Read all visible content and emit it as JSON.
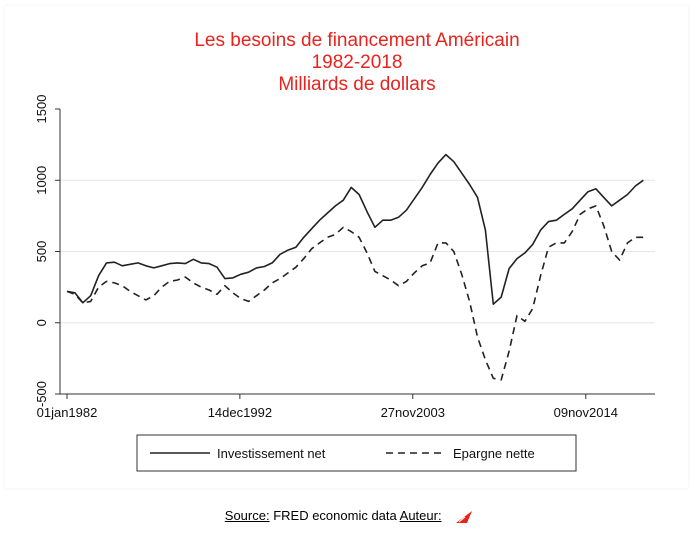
{
  "chart_data": {
    "type": "line",
    "title_lines": [
      "Les besoins de financement Américain",
      "1982-2018",
      "Milliards de dollars"
    ],
    "xlabel": "",
    "ylabel": "",
    "x_tick_labels": [
      "01jan1982",
      "14dec1992",
      "27nov2003",
      "09nov2014"
    ],
    "x_ticks": [
      1982.0,
      1992.95,
      2003.9,
      2014.86
    ],
    "xlim": [
      1982,
      2018.8
    ],
    "y_ticks": [
      -500,
      0,
      500,
      1000,
      1500
    ],
    "y_tick_labels": [
      "-500",
      "0",
      "500",
      "1000",
      "1500"
    ],
    "ylim": [
      -500,
      1500
    ],
    "grid": "horizontal",
    "legend_position": "bottom",
    "series": [
      {
        "name": "Investissement net",
        "style": "solid",
        "color": "#222222",
        "points": [
          [
            1982.0,
            220
          ],
          [
            1982.5,
            210
          ],
          [
            1983.0,
            140
          ],
          [
            1983.5,
            190
          ],
          [
            1984.0,
            330
          ],
          [
            1984.5,
            420
          ],
          [
            1985.0,
            425
          ],
          [
            1985.5,
            400
          ],
          [
            1986.0,
            410
          ],
          [
            1986.5,
            420
          ],
          [
            1987.0,
            400
          ],
          [
            1987.5,
            385
          ],
          [
            1988.0,
            400
          ],
          [
            1988.5,
            415
          ],
          [
            1989.0,
            420
          ],
          [
            1989.5,
            415
          ],
          [
            1990.0,
            445
          ],
          [
            1990.5,
            420
          ],
          [
            1991.0,
            415
          ],
          [
            1991.5,
            390
          ],
          [
            1992.0,
            310
          ],
          [
            1992.5,
            315
          ],
          [
            1993.0,
            340
          ],
          [
            1993.5,
            355
          ],
          [
            1994.0,
            385
          ],
          [
            1994.5,
            395
          ],
          [
            1995.0,
            420
          ],
          [
            1995.5,
            480
          ],
          [
            1996.0,
            510
          ],
          [
            1996.5,
            530
          ],
          [
            1997.0,
            600
          ],
          [
            1997.5,
            660
          ],
          [
            1998.0,
            720
          ],
          [
            1998.5,
            770
          ],
          [
            1999.0,
            820
          ],
          [
            1999.5,
            860
          ],
          [
            2000.0,
            950
          ],
          [
            2000.5,
            900
          ],
          [
            2001.0,
            780
          ],
          [
            2001.5,
            670
          ],
          [
            2002.0,
            720
          ],
          [
            2002.5,
            720
          ],
          [
            2003.0,
            740
          ],
          [
            2003.5,
            790
          ],
          [
            2004.0,
            870
          ],
          [
            2004.5,
            950
          ],
          [
            2005.0,
            1040
          ],
          [
            2005.5,
            1120
          ],
          [
            2006.0,
            1180
          ],
          [
            2006.5,
            1130
          ],
          [
            2007.0,
            1050
          ],
          [
            2007.5,
            970
          ],
          [
            2008.0,
            880
          ],
          [
            2008.5,
            650
          ],
          [
            2009.0,
            130
          ],
          [
            2009.5,
            180
          ],
          [
            2010.0,
            380
          ],
          [
            2010.5,
            450
          ],
          [
            2011.0,
            490
          ],
          [
            2011.5,
            550
          ],
          [
            2012.0,
            650
          ],
          [
            2012.5,
            710
          ],
          [
            2013.0,
            720
          ],
          [
            2013.5,
            760
          ],
          [
            2014.0,
            800
          ],
          [
            2014.5,
            860
          ],
          [
            2015.0,
            920
          ],
          [
            2015.5,
            940
          ],
          [
            2016.0,
            880
          ],
          [
            2016.5,
            820
          ],
          [
            2017.0,
            860
          ],
          [
            2017.5,
            900
          ],
          [
            2018.0,
            960
          ],
          [
            2018.5,
            1000
          ]
        ]
      },
      {
        "name": "Epargne nette",
        "style": "dashed",
        "color": "#222222",
        "points": [
          [
            1982.0,
            220
          ],
          [
            1982.5,
            200
          ],
          [
            1983.0,
            140
          ],
          [
            1983.5,
            150
          ],
          [
            1984.0,
            250
          ],
          [
            1984.5,
            290
          ],
          [
            1985.0,
            280
          ],
          [
            1985.5,
            260
          ],
          [
            1986.0,
            220
          ],
          [
            1986.5,
            190
          ],
          [
            1987.0,
            160
          ],
          [
            1987.5,
            190
          ],
          [
            1988.0,
            250
          ],
          [
            1988.5,
            290
          ],
          [
            1989.0,
            300
          ],
          [
            1989.5,
            320
          ],
          [
            1990.0,
            280
          ],
          [
            1990.5,
            250
          ],
          [
            1991.0,
            230
          ],
          [
            1991.5,
            200
          ],
          [
            1992.0,
            260
          ],
          [
            1992.5,
            210
          ],
          [
            1993.0,
            170
          ],
          [
            1993.5,
            150
          ],
          [
            1994.0,
            190
          ],
          [
            1994.5,
            230
          ],
          [
            1995.0,
            280
          ],
          [
            1995.5,
            310
          ],
          [
            1996.0,
            350
          ],
          [
            1996.5,
            390
          ],
          [
            1997.0,
            450
          ],
          [
            1997.5,
            520
          ],
          [
            1998.0,
            560
          ],
          [
            1998.5,
            600
          ],
          [
            1999.0,
            620
          ],
          [
            1999.5,
            670
          ],
          [
            2000.0,
            640
          ],
          [
            2000.5,
            600
          ],
          [
            2001.0,
            490
          ],
          [
            2001.5,
            360
          ],
          [
            2002.0,
            330
          ],
          [
            2002.5,
            300
          ],
          [
            2003.0,
            260
          ],
          [
            2003.5,
            290
          ],
          [
            2004.0,
            350
          ],
          [
            2004.5,
            400
          ],
          [
            2005.0,
            420
          ],
          [
            2005.5,
            560
          ],
          [
            2006.0,
            560
          ],
          [
            2006.5,
            500
          ],
          [
            2007.0,
            340
          ],
          [
            2007.5,
            150
          ],
          [
            2008.0,
            -100
          ],
          [
            2008.5,
            -260
          ],
          [
            2009.0,
            -390
          ],
          [
            2009.5,
            -400
          ],
          [
            2010.0,
            -200
          ],
          [
            2010.5,
            50
          ],
          [
            2011.0,
            10
          ],
          [
            2011.5,
            100
          ],
          [
            2012.0,
            330
          ],
          [
            2012.5,
            530
          ],
          [
            2013.0,
            560
          ],
          [
            2013.5,
            560
          ],
          [
            2014.0,
            640
          ],
          [
            2014.5,
            760
          ],
          [
            2015.0,
            800
          ],
          [
            2015.5,
            820
          ],
          [
            2016.0,
            680
          ],
          [
            2016.5,
            500
          ],
          [
            2017.0,
            440
          ],
          [
            2017.5,
            560
          ],
          [
            2018.0,
            600
          ],
          [
            2018.5,
            600
          ]
        ]
      }
    ]
  },
  "footer": {
    "source_label": "Source:",
    "source_text": " FRED economic data ",
    "author_label": "Auteur:"
  },
  "colors": {
    "title": "#e8231e",
    "logo": "#e8231e",
    "line": "#222222",
    "grid": "#e6e6e6"
  }
}
